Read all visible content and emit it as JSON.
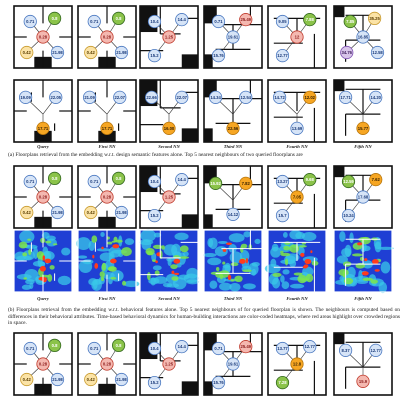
{
  "captions": {
    "a": "(a) Floorplans retrieval from the embedding w.r.t. design semantic features alone. Top 5 nearest neighbours of two queried floorplans are",
    "b": "(b) Floorplans retrieval from the embedding w.r.t. behavioral features alone. Top 5 nearest neighbours of for queried floorplan is shown. The neighbours is computed based on differences in their behavioral attributes. Time-based behavioral dynamics for human-building interactions are color-coded heatmaps, where red areas highlight over crowded regions in space."
  },
  "column_labels": [
    "Query",
    "First NN",
    "Second NN",
    "Third NN",
    "Fourth NN",
    "Fifth NN"
  ],
  "colors": {
    "center_red": "#f4b8b0",
    "center_red_stroke": "#c0392b",
    "blue": "#d6e4f7",
    "blue_stroke": "#4a78c0",
    "green": "#8bc34a",
    "green_stroke": "#33691e",
    "yellow": "#fbe3a6",
    "yellow_stroke": "#c89a2c",
    "orange": "#f6a623",
    "purple": "#d8c4ea",
    "purple_stroke": "#7d4fb0",
    "heat_bg": "#1f3fd4",
    "heat_mid": "#39c7e8",
    "heat_high": "#7ce64a",
    "heat_hot": "#ff3b1c"
  },
  "rows": [
    {
      "id": "a1",
      "panels": [
        {
          "nodes": [
            {
              "v": "0.8",
              "c": "green"
            },
            {
              "v": "0.71",
              "c": "blue"
            },
            {
              "v": "0.28",
              "c": "center"
            },
            {
              "v": "0.42",
              "c": "yellow"
            },
            {
              "v": "21.98",
              "c": "blue"
            }
          ]
        },
        {
          "nodes": [
            {
              "v": "0.8",
              "c": "green"
            },
            {
              "v": "0.71",
              "c": "blue"
            },
            {
              "v": "0.28",
              "c": "center"
            },
            {
              "v": "0.42",
              "c": "yellow"
            },
            {
              "v": "21.98",
              "c": "blue"
            }
          ]
        },
        {
          "nodes": [
            {
              "v": "10.4",
              "c": "blue"
            },
            {
              "v": "14.4",
              "c": "blue"
            },
            {
              "v": "1.25",
              "c": "center"
            },
            {
              "v": "15.2",
              "c": "blue"
            }
          ]
        },
        {
          "nodes": [
            {
              "v": "0.71",
              "c": "blue"
            },
            {
              "v": "25.49",
              "c": "center"
            },
            {
              "v": "19.61",
              "c": "blue"
            },
            {
              "v": "15.76",
              "c": "blue"
            }
          ]
        },
        {
          "nodes": [
            {
              "v": "9.05",
              "c": "blue"
            },
            {
              "v": "7.88",
              "c": "green"
            },
            {
              "v": "12",
              "c": "center"
            },
            {
              "v": "12.77",
              "c": "blue"
            }
          ]
        },
        {
          "nodes": [
            {
              "v": "35.25",
              "c": "yellow"
            },
            {
              "v": "7.85",
              "c": "green"
            },
            {
              "v": "16.85",
              "c": "blue"
            },
            {
              "v": "34.76",
              "c": "purple"
            },
            {
              "v": "12.58",
              "c": "blue"
            }
          ]
        }
      ]
    },
    {
      "id": "a2",
      "panels": [
        {
          "nodes": [
            {
              "v": "19.09",
              "c": "blue"
            },
            {
              "v": "22.05",
              "c": "blue"
            },
            {
              "v": "17.71",
              "c": "orange"
            }
          ]
        },
        {
          "nodes": [
            {
              "v": "21.09",
              "c": "blue"
            },
            {
              "v": "22.07",
              "c": "blue"
            },
            {
              "v": "17.71",
              "c": "orange"
            }
          ]
        },
        {
          "nodes": [
            {
              "v": "22.66",
              "c": "blue"
            },
            {
              "v": "22.07",
              "c": "blue"
            },
            {
              "v": "16.00",
              "c": "orange"
            }
          ]
        },
        {
          "nodes": [
            {
              "v": "14.34",
              "c": "blue"
            },
            {
              "v": "12.54",
              "c": "blue"
            },
            {
              "v": "22.56",
              "c": "orange"
            }
          ]
        },
        {
          "nodes": [
            {
              "v": "14.72",
              "c": "blue"
            },
            {
              "v": "12.02",
              "c": "orange"
            },
            {
              "v": "13.69",
              "c": "blue"
            }
          ]
        },
        {
          "nodes": [
            {
              "v": "17.71",
              "c": "blue"
            },
            {
              "v": "14.20",
              "c": "blue"
            },
            {
              "v": "15.77",
              "c": "orange"
            }
          ]
        }
      ]
    },
    {
      "id": "b1",
      "panels": [
        {
          "nodes": [
            {
              "v": "0.8",
              "c": "green"
            },
            {
              "v": "0.71",
              "c": "blue"
            },
            {
              "v": "0.28",
              "c": "center"
            },
            {
              "v": "0.42",
              "c": "yellow"
            },
            {
              "v": "21.98",
              "c": "blue"
            }
          ]
        },
        {
          "nodes": [
            {
              "v": "0.8",
              "c": "green"
            },
            {
              "v": "0.71",
              "c": "blue"
            },
            {
              "v": "0.28",
              "c": "center"
            },
            {
              "v": "0.42",
              "c": "yellow"
            },
            {
              "v": "21.98",
              "c": "blue"
            }
          ]
        },
        {
          "nodes": [
            {
              "v": "10.4",
              "c": "blue"
            },
            {
              "v": "14.4",
              "c": "blue"
            },
            {
              "v": "1.25",
              "c": "center"
            },
            {
              "v": "15.2",
              "c": "blue"
            }
          ]
        },
        {
          "nodes": [
            {
              "v": "15.92",
              "c": "green"
            },
            {
              "v": "7.82",
              "c": "orange"
            },
            {
              "v": "14.12",
              "c": "blue"
            }
          ]
        },
        {
          "nodes": [
            {
              "v": "13.27",
              "c": "blue"
            },
            {
              "v": "9.68",
              "c": "green"
            },
            {
              "v": "7.05",
              "c": "orange"
            },
            {
              "v": "15.7",
              "c": "blue"
            }
          ]
        },
        {
          "nodes": [
            {
              "v": "12.59",
              "c": "green"
            },
            {
              "v": "7.62",
              "c": "orange"
            },
            {
              "v": "17.68",
              "c": "blue"
            },
            {
              "v": "10.24",
              "c": "blue"
            }
          ]
        }
      ]
    },
    {
      "id": "b2",
      "heatmaps": [
        1,
        1,
        1,
        1,
        1,
        1
      ]
    },
    {
      "id": "c1",
      "panels": [
        {
          "nodes": [
            {
              "v": "0.8",
              "c": "green"
            },
            {
              "v": "0.71",
              "c": "blue"
            },
            {
              "v": "0.28",
              "c": "center"
            },
            {
              "v": "0.42",
              "c": "yellow"
            },
            {
              "v": "21.98",
              "c": "blue"
            }
          ]
        },
        {
          "nodes": [
            {
              "v": "0.8",
              "c": "green"
            },
            {
              "v": "0.71",
              "c": "blue"
            },
            {
              "v": "0.28",
              "c": "center"
            },
            {
              "v": "0.42",
              "c": "yellow"
            },
            {
              "v": "21.98",
              "c": "blue"
            }
          ]
        },
        {
          "nodes": [
            {
              "v": "10.4",
              "c": "blue"
            },
            {
              "v": "14.4",
              "c": "blue"
            },
            {
              "v": "1.25",
              "c": "center"
            },
            {
              "v": "15.2",
              "c": "blue"
            }
          ]
        },
        {
          "nodes": [
            {
              "v": "0.71",
              "c": "blue"
            },
            {
              "v": "25.49",
              "c": "center"
            },
            {
              "v": "19.61",
              "c": "blue"
            },
            {
              "v": "15.76",
              "c": "blue"
            }
          ]
        },
        {
          "nodes": [
            {
              "v": "13.77",
              "c": "blue"
            },
            {
              "v": "12.77",
              "c": "blue"
            },
            {
              "v": "12.8",
              "c": "orange"
            },
            {
              "v": "7.28",
              "c": "green"
            }
          ]
        },
        {
          "nodes": [
            {
              "v": "8.37",
              "c": "blue"
            },
            {
              "v": "12.77",
              "c": "blue"
            },
            {
              "v": "15.9",
              "c": "center"
            }
          ]
        }
      ]
    }
  ]
}
